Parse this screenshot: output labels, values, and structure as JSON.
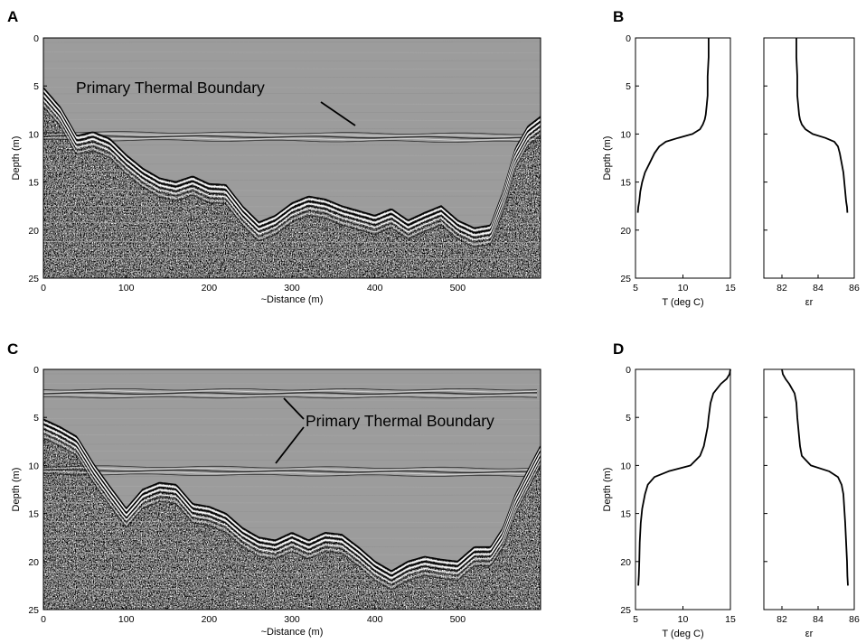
{
  "panel_letters": [
    "A",
    "B",
    "C",
    "D"
  ],
  "chart_data": [
    {
      "panel": "A",
      "type": "heatmap",
      "xlabel": "~Distance (m)",
      "ylabel": "Depth (m)",
      "xlim": [
        0,
        600
      ],
      "ylim": [
        0,
        25
      ],
      "y_inverted": true,
      "xticks": [
        0,
        100,
        200,
        300,
        400,
        500
      ],
      "yticks": [
        0,
        5,
        10,
        15,
        20,
        25
      ],
      "annotation": "Primary Thermal Boundary",
      "thermal_boundary_depth": [
        10.2
      ],
      "bottom_profile": {
        "distance": [
          0,
          20,
          40,
          60,
          80,
          100,
          120,
          140,
          160,
          180,
          200,
          220,
          240,
          260,
          280,
          300,
          320,
          340,
          360,
          380,
          400,
          420,
          440,
          460,
          480,
          500,
          520,
          540,
          555,
          570,
          585,
          600
        ],
        "depth": [
          5.2,
          7.2,
          10.2,
          9.8,
          10.5,
          12.2,
          13.6,
          14.6,
          15.0,
          14.4,
          15.2,
          15.3,
          17.5,
          19.2,
          18.5,
          17.2,
          16.5,
          16.8,
          17.5,
          18.0,
          18.5,
          17.8,
          19.0,
          18.2,
          17.5,
          19.0,
          19.8,
          19.5,
          16.0,
          11.5,
          9.2,
          8.2
        ]
      }
    },
    {
      "panel": "B",
      "type": "line",
      "xlabel": "T (deg C)",
      "ylabel": "Depth (m)",
      "xlim": [
        5,
        15
      ],
      "ylim": [
        0,
        25
      ],
      "y_inverted": true,
      "xticks": [
        5,
        10,
        15
      ],
      "yticks": [
        0,
        5,
        10,
        15,
        20,
        25
      ],
      "x": [
        12.7,
        12.7,
        12.6,
        12.6,
        12.5,
        12.4,
        12.3,
        12.1,
        11.8,
        11.0,
        9.5,
        8.2,
        7.5,
        7.0,
        6.5,
        6.0,
        5.7,
        5.5,
        5.4,
        5.3,
        5.25
      ],
      "y": [
        0,
        2,
        4,
        6,
        7,
        8,
        8.5,
        9,
        9.5,
        10.0,
        10.4,
        10.8,
        11.3,
        12.0,
        13.0,
        14.0,
        15.0,
        16.0,
        17.0,
        17.6,
        18.2
      ]
    },
    {
      "panel": "B",
      "type": "line",
      "xlabel": "εr",
      "ylabel": "",
      "xlim": [
        81,
        86
      ],
      "ylim": [
        0,
        25
      ],
      "y_inverted": true,
      "xticks": [
        82,
        84,
        86
      ],
      "x": [
        82.8,
        82.8,
        82.85,
        82.85,
        82.9,
        82.95,
        83.0,
        83.1,
        83.3,
        83.7,
        84.4,
        84.9,
        85.1,
        85.2,
        85.3,
        85.4,
        85.45,
        85.5,
        85.55,
        85.6,
        85.62
      ],
      "y": [
        0,
        2,
        4,
        6,
        7,
        8,
        8.5,
        9,
        9.5,
        10.0,
        10.4,
        10.8,
        11.3,
        12.0,
        13.0,
        14.0,
        15.0,
        16.0,
        17.0,
        17.6,
        18.2
      ]
    },
    {
      "panel": "C",
      "type": "heatmap",
      "xlabel": "~Distance (m)",
      "ylabel": "Depth (m)",
      "xlim": [
        0,
        600
      ],
      "ylim": [
        0,
        25
      ],
      "y_inverted": true,
      "xticks": [
        0,
        100,
        200,
        300,
        400,
        500
      ],
      "yticks": [
        0,
        5,
        10,
        15,
        20,
        25
      ],
      "annotation": "Primary Thermal Boundary",
      "thermal_boundary_depth": [
        2.5,
        10.5
      ],
      "bottom_profile": {
        "distance": [
          0,
          20,
          40,
          60,
          80,
          100,
          120,
          140,
          160,
          180,
          200,
          220,
          240,
          260,
          280,
          300,
          320,
          340,
          360,
          380,
          400,
          420,
          440,
          460,
          480,
          500,
          520,
          540,
          555,
          570,
          585,
          600
        ],
        "depth": [
          5.2,
          6.0,
          7.0,
          9.8,
          12.2,
          14.5,
          12.5,
          11.8,
          12.0,
          14.0,
          14.3,
          15.0,
          16.5,
          17.5,
          17.8,
          17.0,
          17.8,
          17.0,
          17.2,
          18.5,
          20.0,
          21.0,
          20.0,
          19.5,
          19.8,
          20.0,
          18.5,
          18.5,
          16.5,
          13.0,
          10.5,
          8.0
        ]
      }
    },
    {
      "panel": "D",
      "type": "line",
      "xlabel": "T (deg C)",
      "ylabel": "Depth (m)",
      "xlim": [
        5,
        15
      ],
      "ylim": [
        0,
        25
      ],
      "y_inverted": true,
      "xticks": [
        5,
        10,
        15
      ],
      "yticks": [
        0,
        5,
        10,
        15,
        20,
        25
      ],
      "x": [
        15.0,
        14.9,
        14.6,
        14.0,
        13.2,
        12.9,
        12.7,
        12.6,
        12.4,
        12.2,
        11.8,
        10.8,
        8.5,
        7.0,
        6.3,
        6.0,
        5.7,
        5.55,
        5.45,
        5.4,
        5.35,
        5.3
      ],
      "y": [
        0,
        0.5,
        1.0,
        1.5,
        2.5,
        3.5,
        5.0,
        6.0,
        7.0,
        8.0,
        9.0,
        10.0,
        10.6,
        11.2,
        12.0,
        13.0,
        14.5,
        16.0,
        18.0,
        20.0,
        21.5,
        22.5
      ]
    },
    {
      "panel": "D",
      "type": "line",
      "xlabel": "εr",
      "ylabel": "",
      "xlim": [
        81,
        86
      ],
      "ylim": [
        0,
        25
      ],
      "y_inverted": true,
      "xticks": [
        82,
        84,
        86
      ],
      "x": [
        82.0,
        82.05,
        82.2,
        82.4,
        82.7,
        82.8,
        82.85,
        82.9,
        82.95,
        83.0,
        83.1,
        83.6,
        84.6,
        85.1,
        85.3,
        85.4,
        85.45,
        85.5,
        85.55,
        85.6,
        85.62,
        85.65
      ],
      "y": [
        0,
        0.5,
        1.0,
        1.5,
        2.5,
        3.5,
        5.0,
        6.0,
        7.0,
        8.0,
        9.0,
        10.0,
        10.6,
        11.2,
        12.0,
        13.0,
        14.5,
        16.0,
        18.0,
        20.0,
        21.5,
        22.5
      ]
    }
  ]
}
